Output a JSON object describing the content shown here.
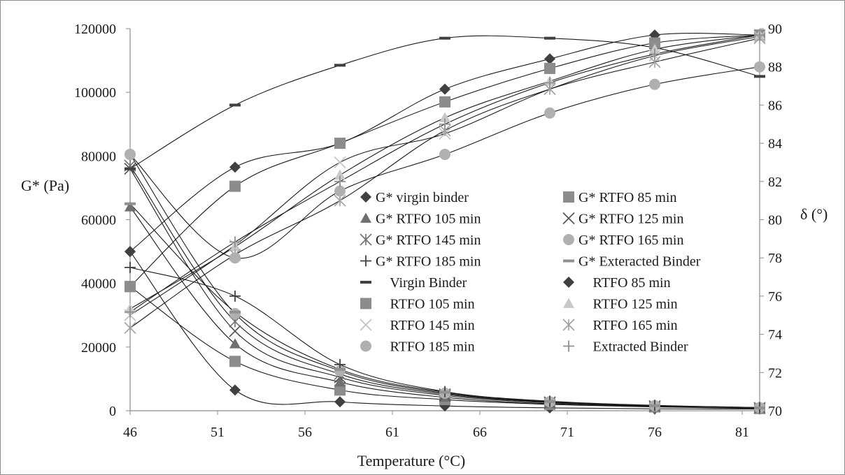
{
  "chart_data": {
    "type": "scatter",
    "xlabel": "Temperature (°C)",
    "ylabel_left": "G* (Pa)",
    "ylabel_right": "δ (°)",
    "xlim": [
      46,
      82
    ],
    "ylim_left": [
      0,
      120000
    ],
    "ylim_right": [
      70,
      90
    ],
    "x_ticks": [
      "46",
      "51",
      "56",
      "61",
      "66",
      "71",
      "76",
      "81"
    ],
    "y_left_ticks": [
      "0",
      "20000",
      "40000",
      "60000",
      "80000",
      "100000",
      "120000"
    ],
    "y_right_ticks": [
      "70",
      "72",
      "74",
      "76",
      "78",
      "80",
      "82",
      "84",
      "86",
      "88",
      "90"
    ],
    "grid": false,
    "legend_position": "center-right",
    "x": [
      46,
      52,
      58,
      64,
      70,
      76,
      82
    ],
    "series": [
      {
        "name": "G* virgin binder",
        "axis": "left",
        "marker": "diamond",
        "color": "#404040",
        "values": [
          50000,
          6500,
          2800,
          1500,
          900,
          600,
          500
        ]
      },
      {
        "name": "G* RTFO 85 min",
        "axis": "left",
        "marker": "square",
        "color": "#8c8c8c",
        "values": [
          39000,
          15500,
          6500,
          3500,
          2000,
          1200,
          700
        ]
      },
      {
        "name": "G* RTFO 105 min",
        "axis": "left",
        "marker": "triangle",
        "color": "#707070",
        "values": [
          64000,
          21000,
          9000,
          4200,
          2200,
          1300,
          800
        ]
      },
      {
        "name": "G* RTFO 125 min",
        "axis": "left",
        "marker": "x",
        "color": "#505050",
        "values": [
          76000,
          25000,
          10500,
          4800,
          2500,
          1400,
          900
        ]
      },
      {
        "name": "G* RTFO 145 min",
        "axis": "left",
        "marker": "asterisk",
        "color": "#707070",
        "values": [
          77000,
          28000,
          11500,
          5200,
          2700,
          1500,
          900
        ]
      },
      {
        "name": "G* RTFO 165 min",
        "axis": "left",
        "marker": "circle",
        "color": "#b0b0b0",
        "values": [
          80500,
          30500,
          12500,
          5500,
          2800,
          1600,
          1000
        ]
      },
      {
        "name": "G* RTFO 185 min",
        "axis": "left",
        "marker": "plus",
        "color": "#404040",
        "values": [
          45000,
          36000,
          14500,
          6000,
          3000,
          1700,
          1000
        ]
      },
      {
        "name": "G* Exteracted Binder",
        "axis": "left",
        "marker": "dash",
        "color": "#909090",
        "values": [
          65000,
          31000,
          13000,
          5800,
          2900,
          1600,
          900
        ]
      },
      {
        "name": "\u0000 Virgin Binder",
        "axis": "right",
        "marker": "dash",
        "color": "#404040",
        "values": [
          76000,
          96000,
          108500,
          117000,
          117000,
          114000,
          105000
        ]
      },
      {
        "name": "\u0000 RTFO 85 min",
        "axis": "right",
        "marker": "diamond",
        "color": "#404040",
        "values": [
          50000,
          76500,
          84000,
          101000,
          110500,
          118000,
          118000
        ]
      },
      {
        "name": "\u0000 RTFO 105 min",
        "axis": "right",
        "marker": "square",
        "color": "#8c8c8c",
        "values": [
          39000,
          70500,
          84000,
          97000,
          107500,
          115500,
          118000
        ]
      },
      {
        "name": "\u0000 RTFO 125 min",
        "axis": "right",
        "marker": "triangle",
        "color": "#c8c8c8",
        "values": [
          32000,
          51500,
          74000,
          92000,
          103500,
          113500,
          118000
        ]
      },
      {
        "name": "\u0000 RTFO 145 min",
        "axis": "right",
        "marker": "x",
        "color": "#c0c0c0",
        "values": [
          30000,
          52000,
          78000,
          87000,
          101000,
          111500,
          117500
        ]
      },
      {
        "name": "\u0000 RTFO 165 min",
        "axis": "right",
        "marker": "asterisk",
        "color": "#a0a0a0",
        "values": [
          26000,
          49000,
          66000,
          88000,
          101000,
          109500,
          117000
        ]
      },
      {
        "name": "\u0000 RTFO 185 min",
        "axis": "right",
        "marker": "circle",
        "color": "#b0b0b0",
        "values": [
          80500,
          48000,
          69000,
          80500,
          93500,
          102500,
          108000
        ]
      },
      {
        "name": "\u0000 Extracted Binder",
        "axis": "right",
        "marker": "plus",
        "color": "#909090",
        "values": [
          31000,
          53000,
          72000,
          90000,
          103000,
          112000,
          118000
        ]
      }
    ]
  }
}
